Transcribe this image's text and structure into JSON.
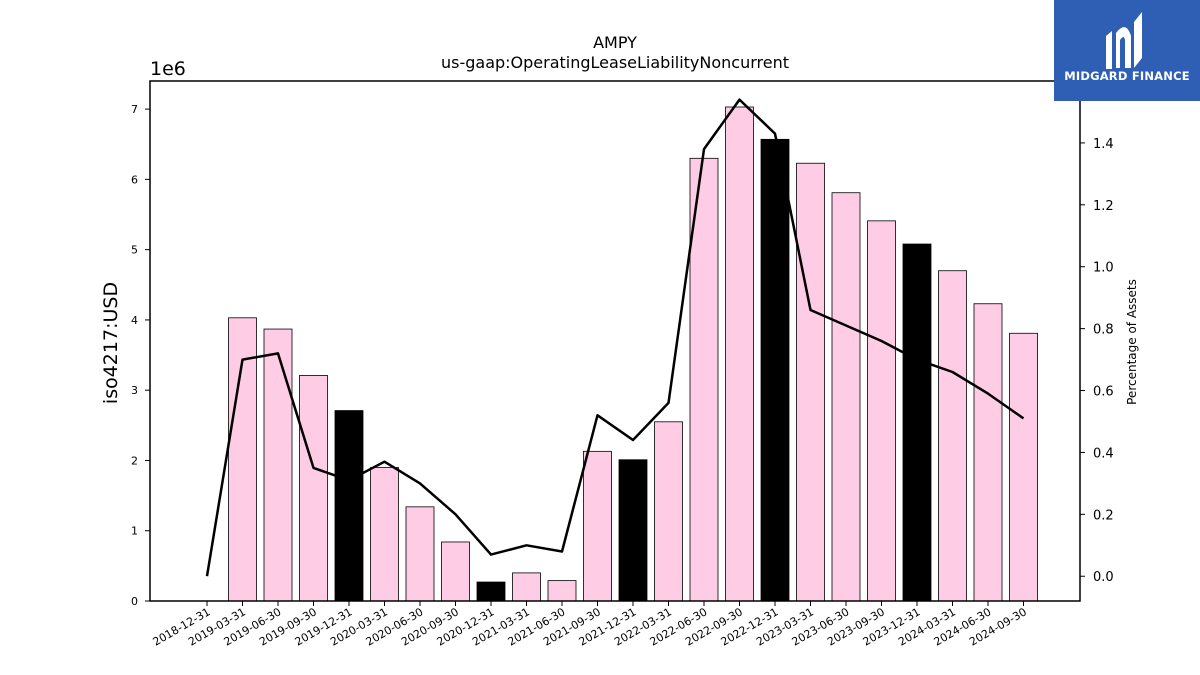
{
  "chart_data": {
    "type": "bar",
    "title": "AMPY",
    "subtitle": "us-gaap:OperatingLeaseLiabilityNoncurrent",
    "ylabel": "iso4217:USD",
    "y_multiplier": "1e6",
    "y2label": "Percentage of Assets",
    "ylim": [
      0,
      7.4
    ],
    "y2lim": [
      -0.08,
      1.6
    ],
    "yticks": [
      "0",
      "1",
      "2",
      "3",
      "4",
      "5",
      "6",
      "7"
    ],
    "y2ticks": [
      "0.0",
      "0.2",
      "0.4",
      "0.6",
      "0.8",
      "1.0",
      "1.2",
      "1.4"
    ],
    "grid": false,
    "categories": [
      "2018-12-31",
      "2019-03-31",
      "2019-06-30",
      "2019-09-30",
      "2019-12-31",
      "2020-03-31",
      "2020-06-30",
      "2020-09-30",
      "2020-12-31",
      "2021-03-31",
      "2021-06-30",
      "2021-09-30",
      "2021-12-31",
      "2022-03-31",
      "2022-06-30",
      "2022-09-30",
      "2022-12-31",
      "2023-03-31",
      "2023-06-30",
      "2023-09-30",
      "2023-12-31",
      "2024-03-31",
      "2024-06-30",
      "2024-09-30"
    ],
    "series": [
      {
        "type": "bar",
        "values": [
          null,
          4.03,
          3.87,
          3.21,
          2.71,
          1.9,
          1.34,
          0.84,
          0.27,
          0.4,
          0.29,
          2.13,
          2.01,
          2.55,
          6.3,
          7.03,
          6.57,
          6.23,
          5.81,
          5.41,
          5.08,
          4.7,
          4.23,
          3.81
        ],
        "colors": [
          "#ffcce6",
          "#ffcce6",
          "#ffcce6",
          "#ffcce6",
          "#000000",
          "#ffcce6",
          "#ffcce6",
          "#ffcce6",
          "#000000",
          "#ffcce6",
          "#ffcce6",
          "#ffcce6",
          "#000000",
          "#ffcce6",
          "#ffcce6",
          "#ffcce6",
          "#000000",
          "#ffcce6",
          "#ffcce6",
          "#ffcce6",
          "#000000",
          "#ffcce6",
          "#ffcce6",
          "#ffcce6"
        ]
      },
      {
        "type": "line",
        "axis": "right",
        "color": "#000000",
        "values": [
          0.0,
          0.7,
          0.72,
          0.35,
          0.31,
          0.37,
          0.3,
          0.2,
          0.07,
          0.1,
          0.08,
          0.52,
          0.44,
          0.56,
          1.38,
          1.54,
          1.43,
          0.86,
          0.81,
          0.76,
          0.7,
          0.66,
          0.59,
          0.51
        ]
      }
    ]
  },
  "logo": {
    "text": "MIDGARD FINANCE",
    "background": "#2e5fb5"
  }
}
